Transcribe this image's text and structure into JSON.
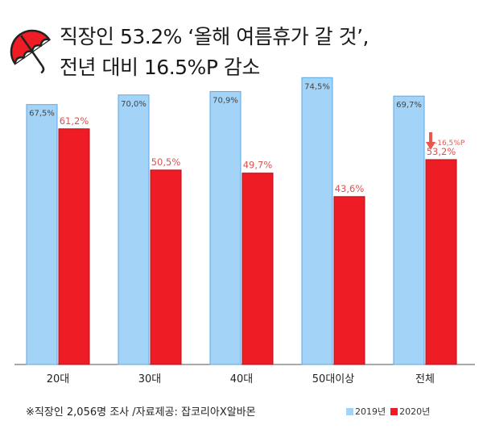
{
  "title_line1": "직장인 53.2% ‘올해 여름휴가 갈 것’,",
  "title_line2": "전년 대비 16.5%P 감소",
  "footer": "※직장인 2,056명 조사 /자료제공: 잡코리아X알바몬",
  "icon": "umbrella-icon",
  "colors": {
    "y2019": "#a3d4f7",
    "y2020": "#ee1c25",
    "label2019": "#444444",
    "label2020": "#d9534f",
    "annotation": "#e8574e"
  },
  "chart_data": {
    "type": "bar",
    "categories": [
      "20대",
      "30대",
      "40대",
      "50대이상",
      "전체"
    ],
    "series": [
      {
        "name": "2019년",
        "values": [
          67.5,
          70.0,
          70.9,
          74.5,
          69.7
        ],
        "labels": [
          "67,5%",
          "70,0%",
          "70,9%",
          "74,5%",
          "69,7%"
        ]
      },
      {
        "name": "2020년",
        "values": [
          61.2,
          50.5,
          49.7,
          43.6,
          53.2
        ],
        "labels": [
          "61,2%",
          "50,5%",
          "49,7%",
          "43,6%",
          "53,2%"
        ]
      }
    ],
    "annotation": {
      "category": "전체",
      "text": "-16,5%P"
    },
    "ylim": [
      0,
      80
    ],
    "legend_position": "bottom-right",
    "grid": false
  }
}
